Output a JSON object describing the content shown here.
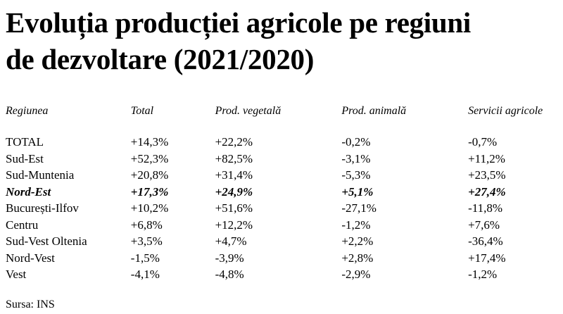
{
  "title_line1": "Evoluția producției agricole pe regiuni",
  "title_line2": "de dezvoltare (2021/2020)",
  "table": {
    "headers": [
      "Regiunea",
      "Total",
      "Prod. vegetală",
      "Prod. animală",
      "Servicii agricole"
    ],
    "rows": [
      [
        "TOTAL",
        "+14,3%",
        "+22,2%",
        "-0,2%",
        "-0,7%"
      ],
      [
        "Sud-Est",
        "+52,3%",
        "+82,5%",
        "-3,1%",
        "+11,2%"
      ],
      [
        "Sud-Muntenia",
        "+20,8%",
        "+31,4%",
        "-5,3%",
        "+23,5%"
      ],
      [
        "Nord-Est",
        "+17,3%",
        "+24,9%",
        "+5,1%",
        "+27,4%"
      ],
      [
        "București-Ilfov",
        "+10,2%",
        "+51,6%",
        "-27,1%",
        "-11,8%"
      ],
      [
        "Centru",
        "+6,8%",
        "+12,2%",
        "-1,2%",
        "+7,6%"
      ],
      [
        "Sud-Vest Oltenia",
        "+3,5%",
        "+4,7%",
        "+2,2%",
        "-36,4%"
      ],
      [
        "Nord-Vest",
        "-1,5%",
        "-3,9%",
        "+2,8%",
        "+17,4%"
      ],
      [
        "Vest",
        "-4,1%",
        "-4,8%",
        "-2,9%",
        "-1,2%"
      ]
    ],
    "highlighted_row": 3
  },
  "source": "Sursa: INS"
}
